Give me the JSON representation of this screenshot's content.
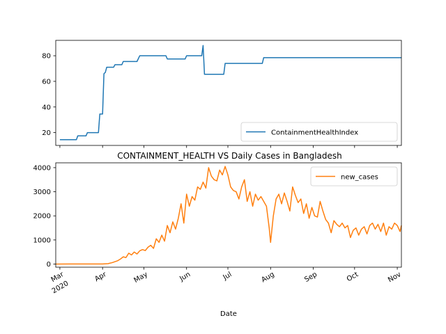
{
  "chart_data": [
    {
      "type": "line",
      "series": [
        {
          "name": "ContainmentHealthIndex",
          "color": "#1f77b4",
          "points": [
            [
              "2020-03-01",
              14.5
            ],
            [
              "2020-03-13",
              14.5
            ],
            [
              "2020-03-14",
              17.5
            ],
            [
              "2020-03-20",
              17.5
            ],
            [
              "2020-03-21",
              20
            ],
            [
              "2020-03-29",
              20
            ],
            [
              "2020-03-30",
              34.5
            ],
            [
              "2020-04-01",
              34.5
            ],
            [
              "2020-04-02",
              66
            ],
            [
              "2020-04-03",
              67
            ],
            [
              "2020-04-04",
              71
            ],
            [
              "2020-04-09",
              71
            ],
            [
              "2020-04-10",
              73
            ],
            [
              "2020-04-15",
              73
            ],
            [
              "2020-04-16",
              75.5
            ],
            [
              "2020-04-26",
              75.5
            ],
            [
              "2020-04-28",
              80
            ],
            [
              "2020-05-17",
              80
            ],
            [
              "2020-05-18",
              77.5
            ],
            [
              "2020-05-31",
              77.5
            ],
            [
              "2020-06-01",
              80
            ],
            [
              "2020-06-12",
              80
            ],
            [
              "2020-06-13",
              88
            ],
            [
              "2020-06-14",
              65.5
            ],
            [
              "2020-06-28",
              65.5
            ],
            [
              "2020-06-29",
              74
            ],
            [
              "2020-07-26",
              74
            ],
            [
              "2020-07-27",
              78.5
            ],
            [
              "2020-11-04",
              78.5
            ]
          ]
        }
      ],
      "ylim": [
        10,
        92
      ],
      "yticks": [
        20,
        40,
        60,
        80
      ],
      "xlim": [
        "2020-02-27",
        "2020-11-04"
      ],
      "legend": "lower-right"
    },
    {
      "type": "line",
      "title": "CONTAINMENT_HEALTH VS Daily Cases in Bangladesh",
      "xlabel": "Date",
      "series": [
        {
          "name": "new_cases",
          "color": "#ff7f0e",
          "points": [
            [
              "2020-02-27",
              0
            ],
            [
              "2020-03-08",
              3
            ],
            [
              "2020-03-20",
              5
            ],
            [
              "2020-04-01",
              2
            ],
            [
              "2020-04-05",
              18
            ],
            [
              "2020-04-08",
              60
            ],
            [
              "2020-04-10",
              100
            ],
            [
              "2020-04-12",
              140
            ],
            [
              "2020-04-14",
              210
            ],
            [
              "2020-04-16",
              300
            ],
            [
              "2020-04-18",
              270
            ],
            [
              "2020-04-20",
              450
            ],
            [
              "2020-04-22",
              380
            ],
            [
              "2020-04-24",
              500
            ],
            [
              "2020-04-26",
              420
            ],
            [
              "2020-04-28",
              550
            ],
            [
              "2020-04-30",
              600
            ],
            [
              "2020-05-02",
              560
            ],
            [
              "2020-05-04",
              700
            ],
            [
              "2020-05-06",
              780
            ],
            [
              "2020-05-08",
              650
            ],
            [
              "2020-05-10",
              1050
            ],
            [
              "2020-05-12",
              900
            ],
            [
              "2020-05-14",
              1200
            ],
            [
              "2020-05-16",
              950
            ],
            [
              "2020-05-18",
              1600
            ],
            [
              "2020-05-20",
              1300
            ],
            [
              "2020-05-22",
              1750
            ],
            [
              "2020-05-24",
              1450
            ],
            [
              "2020-05-26",
              1900
            ],
            [
              "2020-05-28",
              2500
            ],
            [
              "2020-05-30",
              1700
            ],
            [
              "2020-06-01",
              2900
            ],
            [
              "2020-06-03",
              2400
            ],
            [
              "2020-06-05",
              2800
            ],
            [
              "2020-06-07",
              2650
            ],
            [
              "2020-06-09",
              3200
            ],
            [
              "2020-06-11",
              3100
            ],
            [
              "2020-06-13",
              3400
            ],
            [
              "2020-06-15",
              3150
            ],
            [
              "2020-06-17",
              4000
            ],
            [
              "2020-06-19",
              3650
            ],
            [
              "2020-06-21",
              3500
            ],
            [
              "2020-06-23",
              3450
            ],
            [
              "2020-06-25",
              3900
            ],
            [
              "2020-06-27",
              3700
            ],
            [
              "2020-06-29",
              4050
            ],
            [
              "2020-07-01",
              3700
            ],
            [
              "2020-07-03",
              3200
            ],
            [
              "2020-07-05",
              3050
            ],
            [
              "2020-07-07",
              3000
            ],
            [
              "2020-07-09",
              2700
            ],
            [
              "2020-07-11",
              3200
            ],
            [
              "2020-07-13",
              3500
            ],
            [
              "2020-07-15",
              2600
            ],
            [
              "2020-07-17",
              3000
            ],
            [
              "2020-07-19",
              2400
            ],
            [
              "2020-07-21",
              2900
            ],
            [
              "2020-07-23",
              2650
            ],
            [
              "2020-07-25",
              2800
            ],
            [
              "2020-07-27",
              2600
            ],
            [
              "2020-07-29",
              2400
            ],
            [
              "2020-07-31",
              1500
            ],
            [
              "2020-08-01",
              900
            ],
            [
              "2020-08-03",
              2000
            ],
            [
              "2020-08-05",
              2700
            ],
            [
              "2020-08-07",
              2900
            ],
            [
              "2020-08-09",
              2500
            ],
            [
              "2020-08-11",
              2950
            ],
            [
              "2020-08-13",
              2600
            ],
            [
              "2020-08-15",
              2200
            ],
            [
              "2020-08-17",
              3200
            ],
            [
              "2020-08-19",
              2850
            ],
            [
              "2020-08-21",
              2550
            ],
            [
              "2020-08-23",
              2700
            ],
            [
              "2020-08-25",
              2100
            ],
            [
              "2020-08-27",
              2500
            ],
            [
              "2020-08-29",
              1900
            ],
            [
              "2020-08-31",
              2350
            ],
            [
              "2020-09-02",
              2000
            ],
            [
              "2020-09-04",
              1950
            ],
            [
              "2020-09-06",
              2600
            ],
            [
              "2020-09-08",
              2200
            ],
            [
              "2020-09-10",
              1850
            ],
            [
              "2020-09-12",
              1700
            ],
            [
              "2020-09-14",
              1300
            ],
            [
              "2020-09-16",
              1800
            ],
            [
              "2020-09-18",
              1650
            ],
            [
              "2020-09-20",
              1550
            ],
            [
              "2020-09-22",
              1700
            ],
            [
              "2020-09-24",
              1500
            ],
            [
              "2020-09-26",
              1600
            ],
            [
              "2020-09-28",
              1100
            ],
            [
              "2020-09-30",
              1400
            ],
            [
              "2020-10-02",
              1500
            ],
            [
              "2020-10-04",
              1200
            ],
            [
              "2020-10-06",
              1450
            ],
            [
              "2020-10-08",
              1550
            ],
            [
              "2020-10-10",
              1250
            ],
            [
              "2020-10-12",
              1600
            ],
            [
              "2020-10-14",
              1700
            ],
            [
              "2020-10-16",
              1450
            ],
            [
              "2020-10-18",
              1650
            ],
            [
              "2020-10-20",
              1350
            ],
            [
              "2020-10-22",
              1700
            ],
            [
              "2020-10-24",
              1200
            ],
            [
              "2020-10-26",
              1550
            ],
            [
              "2020-10-28",
              1450
            ],
            [
              "2020-10-30",
              1700
            ],
            [
              "2020-11-01",
              1600
            ],
            [
              "2020-11-03",
              1350
            ],
            [
              "2020-11-04",
              1600
            ]
          ]
        }
      ],
      "ylim": [
        -130,
        4200
      ],
      "yticks": [
        0,
        1000,
        2000,
        3000,
        4000
      ],
      "xlim": [
        "2020-02-27",
        "2020-11-04"
      ],
      "xticks": [
        {
          "date": "2020-03-01",
          "label": "Mar",
          "sublabel": "2020"
        },
        {
          "date": "2020-04-01",
          "label": "Apr"
        },
        {
          "date": "2020-05-01",
          "label": "May"
        },
        {
          "date": "2020-06-01",
          "label": "Jun"
        },
        {
          "date": "2020-07-01",
          "label": "Jul"
        },
        {
          "date": "2020-08-01",
          "label": "Aug"
        },
        {
          "date": "2020-09-01",
          "label": "Sep"
        },
        {
          "date": "2020-10-01",
          "label": "Oct"
        },
        {
          "date": "2020-11-01",
          "label": "Nov"
        }
      ],
      "legend": "upper-right"
    }
  ]
}
